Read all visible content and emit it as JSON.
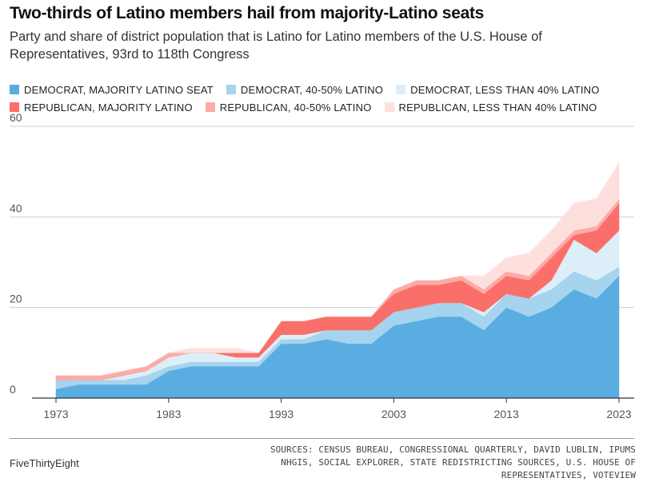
{
  "header": {
    "title": "Two-thirds of Latino members hail from majority-Latino seats",
    "subtitle": "Party and share of district population that is Latino for Latino members of the U.S. House of Representatives, 93rd to 118th Congress"
  },
  "footer": {
    "brand": "FiveThirtyEight",
    "sources": "SOURCES: CENSUS BUREAU, CONGRESSIONAL QUARTERLY, DAVID LUBLIN, IPUMS NHGIS, SOCIAL EXPLORER, STATE REDISTRICTING SOURCES, U.S. HOUSE OF REPRESENTATIVES, VOTEVIEW"
  },
  "chart_data": {
    "type": "area",
    "stacked": true,
    "title": "Two-thirds of Latino members hail from majority-Latino seats",
    "subtitle": "Party and share of district population that is Latino for Latino members of the U.S. House of Representatives, 93rd to 118th Congress",
    "xlabel": "",
    "ylabel": "",
    "xlim": [
      1973,
      2023
    ],
    "ylim": [
      0,
      60
    ],
    "x_ticks": [
      "1973",
      "1983",
      "1993",
      "2003",
      "2013",
      "2023"
    ],
    "y_ticks": [
      "0",
      "20",
      "40",
      "60"
    ],
    "grid": "horizontal",
    "legend_position": "top",
    "x": [
      1973,
      1975,
      1977,
      1979,
      1981,
      1983,
      1985,
      1987,
      1989,
      1991,
      1993,
      1995,
      1997,
      1999,
      2001,
      2003,
      2005,
      2007,
      2009,
      2011,
      2013,
      2015,
      2017,
      2019,
      2021,
      2023
    ],
    "series": [
      {
        "name": "DEMOCRAT, MAJORITY LATINO SEAT",
        "color": "#5aade0",
        "values": [
          2,
          3,
          3,
          3,
          3,
          6,
          7,
          7,
          7,
          7,
          12,
          12,
          13,
          12,
          12,
          16,
          17,
          18,
          18,
          15,
          20,
          18,
          20,
          24,
          22,
          27
        ]
      },
      {
        "name": "DEMOCRAT, 40-50% LATINO",
        "color": "#a6d3ee",
        "values": [
          2,
          1,
          1,
          1,
          2,
          1,
          1,
          1,
          1,
          1,
          1,
          1,
          2,
          3,
          3,
          3,
          3,
          3,
          3,
          3,
          3,
          4,
          4,
          4,
          4,
          2
        ]
      },
      {
        "name": "DEMOCRAT, LESS THAN 40% LATINO",
        "color": "#dceef8",
        "values": [
          0,
          0,
          0,
          1,
          1,
          2,
          2,
          2,
          1,
          1,
          1,
          1,
          0,
          0,
          0,
          0,
          0,
          0,
          0,
          1,
          0,
          0,
          2,
          7,
          6,
          8
        ]
      },
      {
        "name": "REPUBLICAN, MAJORITY LATINO",
        "color": "#fa6f6a",
        "values": [
          0,
          0,
          0,
          0,
          0,
          0,
          0,
          0,
          1,
          1,
          3,
          3,
          3,
          3,
          3,
          4,
          5,
          4,
          5,
          4,
          4,
          4,
          5,
          1,
          5,
          6
        ]
      },
      {
        "name": "REPUBLICAN, 40-50% LATINO",
        "color": "#fcaba6",
        "values": [
          1,
          1,
          1,
          1,
          1,
          1,
          0,
          0,
          0,
          0,
          0,
          0,
          0,
          0,
          0,
          1,
          1,
          1,
          1,
          1,
          1,
          1,
          1,
          1,
          1,
          1
        ]
      },
      {
        "name": "REPUBLICAN, LESS THAN 40% LATINO",
        "color": "#fde0de",
        "values": [
          0,
          0,
          0,
          0,
          0,
          0,
          1,
          1,
          1,
          0,
          0,
          0,
          0,
          0,
          0,
          0,
          0,
          0,
          0,
          3,
          3,
          5,
          5,
          6,
          6,
          8
        ]
      }
    ]
  }
}
